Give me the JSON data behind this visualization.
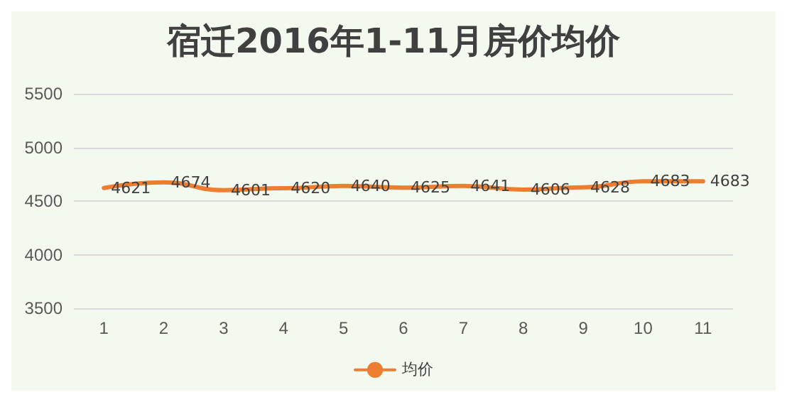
{
  "chart_data": {
    "type": "line",
    "title": "宿迁2016年1-11月房价均价",
    "categories": [
      "1",
      "2",
      "3",
      "4",
      "5",
      "6",
      "7",
      "8",
      "9",
      "10",
      "11"
    ],
    "series": [
      {
        "name": "均价",
        "color": "#ed7d31",
        "values": [
          4621,
          4674,
          4601,
          4620,
          4640,
          4625,
          4641,
          4606,
          4628,
          4683,
          4683
        ]
      }
    ],
    "ylim": [
      3500,
      5500
    ],
    "yticks": [
      3500,
      4000,
      4500,
      5000,
      5500
    ],
    "grid": "y",
    "legend": "bottom",
    "data_labels": true,
    "marker": "none",
    "line_style": "solid"
  }
}
